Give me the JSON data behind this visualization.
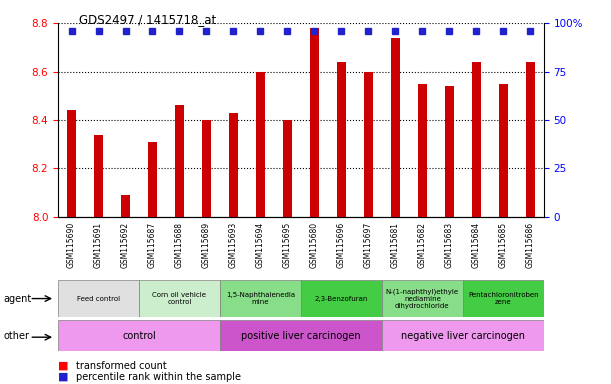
{
  "title": "GDS2497 / 1415718_at",
  "samples": [
    "GSM115690",
    "GSM115691",
    "GSM115692",
    "GSM115687",
    "GSM115688",
    "GSM115689",
    "GSM115693",
    "GSM115694",
    "GSM115695",
    "GSM115680",
    "GSM115696",
    "GSM115697",
    "GSM115681",
    "GSM115682",
    "GSM115683",
    "GSM115684",
    "GSM115685",
    "GSM115686"
  ],
  "values": [
    8.44,
    8.34,
    8.09,
    8.31,
    8.46,
    8.4,
    8.43,
    8.6,
    8.4,
    8.78,
    8.64,
    8.6,
    8.74,
    8.55,
    8.54,
    8.64,
    8.55,
    8.64
  ],
  "ymin": 8.0,
  "ymax": 8.8,
  "bar_color": "#cc0000",
  "dot_color": "#2222cc",
  "agent_groups": [
    {
      "label": "Feed control",
      "start": 0,
      "end": 3,
      "color": "#e0e0e0"
    },
    {
      "label": "Corn oil vehicle\ncontrol",
      "start": 3,
      "end": 6,
      "color": "#cceecc"
    },
    {
      "label": "1,5-Naphthalenedia\nmine",
      "start": 6,
      "end": 9,
      "color": "#88dd88"
    },
    {
      "label": "2,3-Benzofuran",
      "start": 9,
      "end": 12,
      "color": "#44cc44"
    },
    {
      "label": "N-(1-naphthyl)ethyle\nnediamine\ndihydrochloride",
      "start": 12,
      "end": 15,
      "color": "#88dd88"
    },
    {
      "label": "Pentachloronitroben\nzene",
      "start": 15,
      "end": 18,
      "color": "#44cc44"
    }
  ],
  "other_groups": [
    {
      "label": "control",
      "start": 0,
      "end": 6,
      "color": "#ee99ee"
    },
    {
      "label": "positive liver carcinogen",
      "start": 6,
      "end": 12,
      "color": "#cc55cc"
    },
    {
      "label": "negative liver carcinogen",
      "start": 12,
      "end": 18,
      "color": "#ee99ee"
    }
  ],
  "yticks": [
    8.0,
    8.2,
    8.4,
    8.6,
    8.8
  ],
  "right_ytick_labels": [
    "0",
    "25",
    "50",
    "75",
    "100%"
  ],
  "right_yticks": [
    0,
    25,
    50,
    75,
    100
  ]
}
